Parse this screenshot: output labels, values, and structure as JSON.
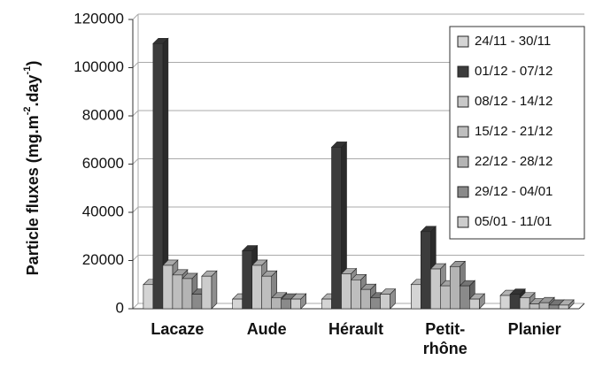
{
  "chart_data": {
    "type": "bar",
    "y_label": [
      "Particle fluxes (mg.m",
      "-2",
      ".day",
      "-1",
      ")"
    ],
    "categories": [
      "Lacaze",
      "Aude",
      "Hérault",
      "Petit-rhône",
      "Planier"
    ],
    "series": [
      {
        "name": "24/11 - 30/11",
        "color": "#d4d4d4",
        "values": [
          10000,
          4000,
          4000,
          10000,
          5500
        ]
      },
      {
        "name": "01/12 - 07/12",
        "color": "#3c3c3c",
        "values": [
          110000,
          24000,
          67000,
          32000,
          6000
        ]
      },
      {
        "name": "08/12 - 14/12",
        "color": "#c8c8c8",
        "values": [
          18000,
          18000,
          14500,
          16500,
          4500
        ]
      },
      {
        "name": "15/12 - 21/12",
        "color": "#bebebe",
        "values": [
          14000,
          13500,
          12000,
          9500,
          2000
        ]
      },
      {
        "name": "22/12 - 28/12",
        "color": "#b4b4b4",
        "values": [
          12500,
          4500,
          8000,
          17500,
          2500
        ]
      },
      {
        "name": "29/12 - 04/01",
        "color": "#8a8a8a",
        "values": [
          6000,
          4000,
          4500,
          9500,
          1500
        ]
      },
      {
        "name": "05/01 - 11/01",
        "color": "#cccccc",
        "values": [
          13500,
          4000,
          6000,
          4000,
          1500
        ]
      }
    ],
    "ylim": [
      0,
      120000
    ],
    "yticks": [
      0,
      20000,
      40000,
      60000,
      80000,
      100000,
      120000
    ],
    "grid": true,
    "legend": "top-right"
  }
}
